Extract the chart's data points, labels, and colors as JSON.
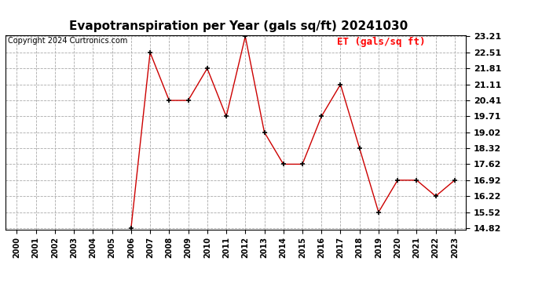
{
  "title": "Evapotranspiration per Year (gals sq/ft) 20241030",
  "copyright": "Copyright 2024 Curtronics.com",
  "legend_label": "ET (gals/sq ft)",
  "years": [
    2000,
    2001,
    2002,
    2003,
    2004,
    2005,
    2006,
    2007,
    2008,
    2009,
    2010,
    2011,
    2012,
    2013,
    2014,
    2015,
    2016,
    2017,
    2018,
    2019,
    2020,
    2021,
    2022,
    2023
  ],
  "values": [
    null,
    null,
    null,
    null,
    null,
    null,
    14.82,
    22.51,
    20.41,
    20.41,
    21.81,
    19.71,
    23.21,
    19.02,
    17.62,
    17.62,
    19.71,
    21.11,
    18.32,
    15.52,
    16.92,
    16.92,
    16.22,
    16.92
  ],
  "line_color": "#cc0000",
  "marker": "+",
  "marker_color": "#000000",
  "marker_size": 5,
  "marker_linewidth": 1.2,
  "ylim_min": 14.82,
  "ylim_max": 23.21,
  "yticks": [
    14.82,
    15.52,
    16.22,
    16.92,
    17.62,
    18.32,
    19.02,
    19.71,
    20.41,
    21.11,
    21.81,
    22.51,
    23.21
  ],
  "background_color": "#ffffff",
  "grid_color": "#aaaaaa",
  "title_fontsize": 11,
  "copyright_fontsize": 7,
  "legend_fontsize": 9,
  "tick_fontsize": 7,
  "ytick_fontsize": 8
}
